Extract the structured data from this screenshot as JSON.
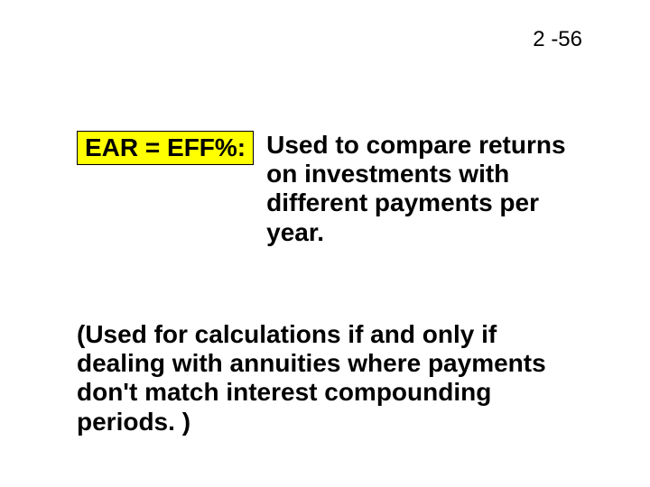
{
  "page_number": "2 -56",
  "term": "EAR = EFF%:",
  "definition": "Used to compare returns on investments with different payments per year.",
  "note": "(Used for calculations if and only if dealing with annuities where payments don't match interest compounding periods. )",
  "colors": {
    "highlight_bg": "#ffff00",
    "text": "#000000",
    "page_bg": "#ffffff"
  },
  "font_sizes": {
    "page_number": 24,
    "body": 28
  }
}
